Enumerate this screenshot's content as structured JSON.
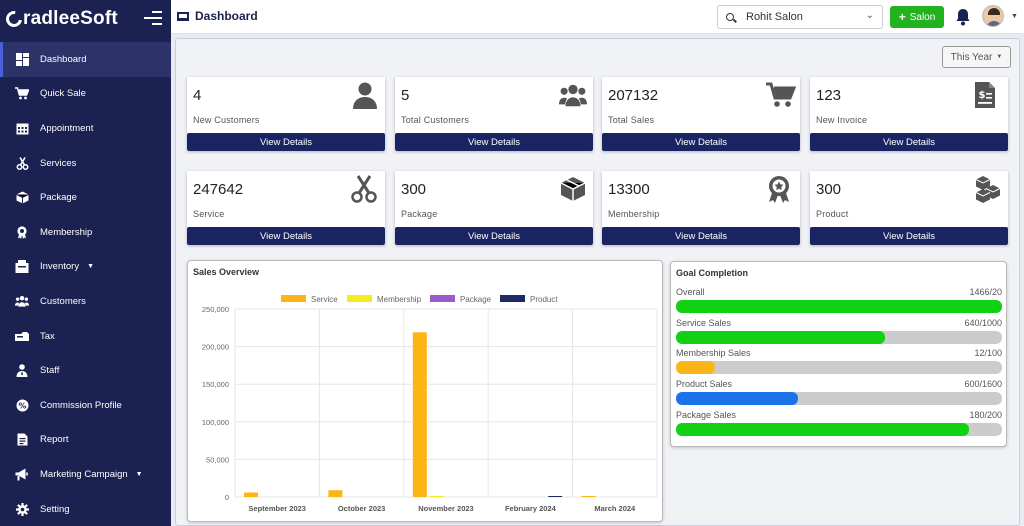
{
  "app": {
    "logo_text": "radleeSoft"
  },
  "header": {
    "title": "Dashboard",
    "salon_selected": "Rohit Salon",
    "add_salon_label": "Salon"
  },
  "filter": {
    "period": "This Year"
  },
  "sidebar": {
    "items": [
      {
        "label": "Dashboard",
        "icon": "dashboard-icon",
        "active": true
      },
      {
        "label": "Quick Sale",
        "icon": "cart-icon"
      },
      {
        "label": "Appointment",
        "icon": "calendar-icon"
      },
      {
        "label": "Services",
        "icon": "scissors-icon"
      },
      {
        "label": "Package",
        "icon": "box-icon"
      },
      {
        "label": "Membership",
        "icon": "award-icon"
      },
      {
        "label": "Inventory",
        "icon": "inventory-icon",
        "caret": true
      },
      {
        "label": "Customers",
        "icon": "users-icon"
      },
      {
        "label": "Tax",
        "icon": "tax-icon"
      },
      {
        "label": "Staff",
        "icon": "staff-icon"
      },
      {
        "label": "Commission Profile",
        "icon": "commission-icon"
      },
      {
        "label": "Report",
        "icon": "report-icon"
      },
      {
        "label": "Marketing Campaign",
        "icon": "megaphone-icon",
        "caret": true
      },
      {
        "label": "Setting",
        "icon": "gear-icon"
      }
    ]
  },
  "cards": [
    {
      "value": "4",
      "label": "New Customers",
      "button": "View Details",
      "icon": "user-icon"
    },
    {
      "value": "5",
      "label": "Total Customers",
      "button": "View Details",
      "icon": "users-icon"
    },
    {
      "value": "207132",
      "label": "Total Sales",
      "button": "View Details",
      "icon": "cart-icon"
    },
    {
      "value": "123",
      "label": "New Invoice",
      "button": "View Details",
      "icon": "invoice-icon"
    },
    {
      "value": "247642",
      "label": "Service",
      "button": "View Details",
      "icon": "scissors-icon"
    },
    {
      "value": "300",
      "label": "Package",
      "button": "View Details",
      "icon": "box-icon"
    },
    {
      "value": "13300",
      "label": "Membership",
      "button": "View Details",
      "icon": "award-icon"
    },
    {
      "value": "300",
      "label": "Product",
      "button": "View Details",
      "icon": "cubes-icon"
    }
  ],
  "sales_overview": {
    "title": "Sales Overview"
  },
  "chart_data": {
    "type": "bar",
    "title": "Sales Overview",
    "categories": [
      "September 2023",
      "October 2023",
      "November 2023",
      "February 2024",
      "March 2024"
    ],
    "series": [
      {
        "name": "Service",
        "color": "#fbb515",
        "values": [
          6000,
          9000,
          219000,
          0,
          500
        ]
      },
      {
        "name": "Membership",
        "color": "#f7ea1e",
        "values": [
          0,
          0,
          500,
          0,
          0
        ]
      },
      {
        "name": "Package",
        "color": "#9b59c9",
        "values": [
          0,
          0,
          0,
          0,
          0
        ]
      },
      {
        "name": "Product",
        "color": "#1e2a66",
        "values": [
          0,
          0,
          0,
          300,
          0
        ]
      }
    ],
    "y_ticks": [
      "0",
      "50,000",
      "100,000",
      "150,000",
      "200,000",
      "250,000"
    ],
    "ylim": [
      0,
      250000
    ],
    "legend": "top",
    "grid": true
  },
  "goal_completion": {
    "title": "Goal Completion",
    "goals": [
      {
        "label": "Overall",
        "value": "1466/20",
        "fraction": 1.0,
        "color": "#12d112"
      },
      {
        "label": "Service Sales",
        "value": "640/1000",
        "fraction": 0.64,
        "color": "#12d112"
      },
      {
        "label": "Membership Sales",
        "value": "12/100",
        "fraction": 0.12,
        "color": "#fbb515"
      },
      {
        "label": "Product Sales",
        "value": "600/1600",
        "fraction": 0.375,
        "color": "#1a73e8"
      },
      {
        "label": "Package Sales",
        "value": "180/200",
        "fraction": 0.9,
        "color": "#12d112"
      }
    ]
  }
}
